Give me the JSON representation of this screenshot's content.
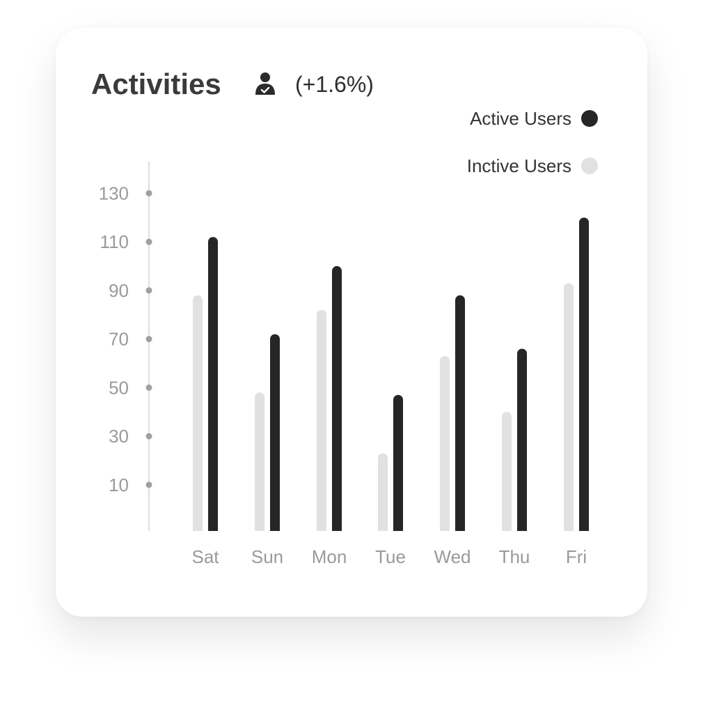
{
  "header": {
    "title": "Activities",
    "icon": "user-check-icon",
    "change": "(+1.6%)"
  },
  "colors": {
    "active": "#262626",
    "inactive": "#e1e1e1",
    "axis": "#d4d4d4",
    "tick_dot": "#a0a0a0"
  },
  "chart_data": {
    "type": "bar",
    "categories": [
      "Sat",
      "Sun",
      "Mon",
      "Tue",
      "Wed",
      "Thu",
      "Fri"
    ],
    "series": [
      {
        "name": "Inctive Users",
        "values": [
          88,
          48,
          82,
          23,
          63,
          40,
          93
        ]
      },
      {
        "name": "Active Users",
        "values": [
          112,
          72,
          100,
          47,
          88,
          66,
          120
        ]
      }
    ],
    "yticks": [
      10,
      30,
      50,
      70,
      90,
      110,
      130
    ],
    "ylim": [
      -9,
      143
    ],
    "legend": {
      "position": "top-right",
      "active_label": "Active Users",
      "inactive_label": "Inctive Users"
    },
    "xlabel": "",
    "ylabel": ""
  }
}
